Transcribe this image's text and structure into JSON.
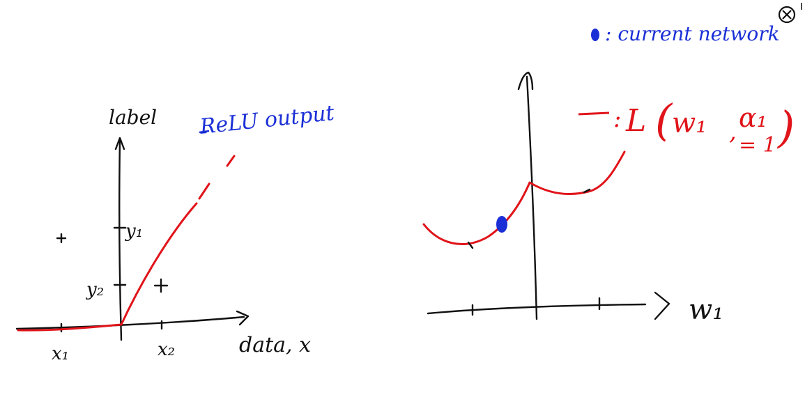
{
  "close_button": {
    "icon": "close-circle-icon"
  },
  "left_plot": {
    "y_axis_label": "label",
    "x_axis_label": "data, x",
    "curve_label": "ReLU output",
    "y_ticks": [
      "y₁",
      "y₂"
    ],
    "x_ticks": [
      "x₁",
      "x₂"
    ],
    "data_point_marker": "+"
  },
  "right_plot": {
    "x_axis_label": "w₁",
    "legend_marker_text": ": current network",
    "loss_label_func": "L",
    "loss_label_w": "w₁",
    "loss_label_alpha": "α₁",
    "loss_label_value": "= 1"
  },
  "colors": {
    "ink": "#111111",
    "relu": "#e0141a",
    "annotation": "#1a2fd6"
  }
}
